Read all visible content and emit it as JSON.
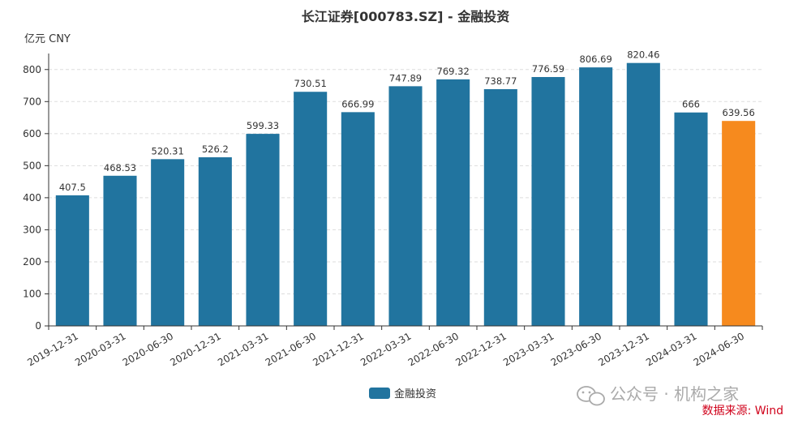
{
  "chart_data": {
    "type": "bar",
    "title": "长江证券[000783.SZ] - 金融投资",
    "ylabel": "亿元  CNY",
    "ylim": [
      0,
      850
    ],
    "yticks": [
      0,
      100,
      200,
      300,
      400,
      500,
      600,
      700,
      800
    ],
    "categories": [
      "2019-12-31",
      "2020-03-31",
      "2020-06-30",
      "2020-12-31",
      "2021-03-31",
      "2021-06-30",
      "2021-12-31",
      "2022-03-31",
      "2022-06-30",
      "2022-12-31",
      "2023-03-31",
      "2023-06-30",
      "2023-12-31",
      "2024-03-31",
      "2024-06-30"
    ],
    "values": [
      407.5,
      468.53,
      520.31,
      526.2,
      599.33,
      730.51,
      666.99,
      747.89,
      769.32,
      738.77,
      776.59,
      806.69,
      820.46,
      666,
      639.56
    ],
    "labels": [
      "407.5",
      "468.53",
      "520.31",
      "526.2",
      "599.33",
      "730.51",
      "666.99",
      "747.89",
      "769.32",
      "738.77",
      "776.59",
      "806.69",
      "820.46",
      "666",
      "639.56"
    ],
    "highlight_index": 14,
    "colors": {
      "bar": "#21749f",
      "highlight": "#f68a1e",
      "grid": "#dddddd",
      "axis": "#333333"
    },
    "legend": {
      "label": "金融投资",
      "position": "bottom-center"
    },
    "grid": true
  },
  "watermark": "公众号 · 机构之家",
  "source": "数据来源: Wind"
}
